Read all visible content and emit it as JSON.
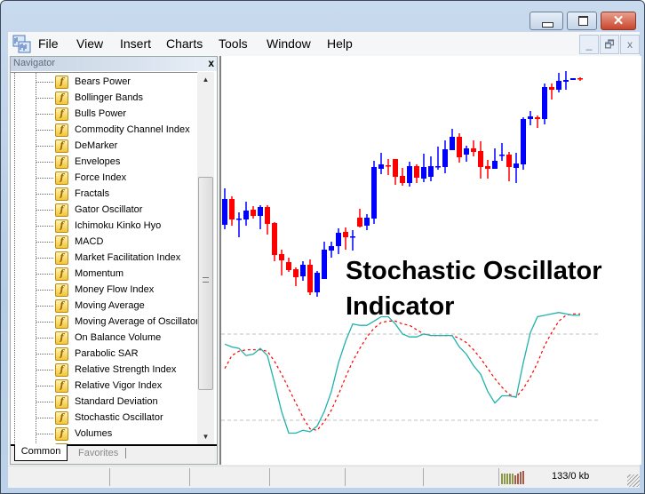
{
  "window": {
    "close_glyph": "✕"
  },
  "menu": [
    "File",
    "View",
    "Insert",
    "Charts",
    "Tools",
    "Window",
    "Help"
  ],
  "mdi_buttons": [
    "_",
    "🗗",
    "x"
  ],
  "navigator": {
    "title": "Navigator",
    "close": "x",
    "items": [
      "Bears Power",
      "Bollinger Bands",
      "Bulls Power",
      "Commodity Channel Index",
      "DeMarker",
      "Envelopes",
      "Force Index",
      "Fractals",
      "Gator Oscillator",
      "Ichimoku Kinko Hyo",
      "MACD",
      "Market Facilitation Index",
      "Momentum",
      "Money Flow Index",
      "Moving Average",
      "Moving Average of Oscillator",
      "On Balance Volume",
      "Parabolic SAR",
      "Relative Strength Index",
      "Relative Vigor Index",
      "Standard Deviation",
      "Stochastic Oscillator",
      "Volumes",
      ""
    ],
    "item_icon": "f",
    "tabs": [
      "Common",
      "Favorites"
    ],
    "active_tab": "Common"
  },
  "chart": {
    "overlay_line1": "Stochastic Oscillator",
    "overlay_line2": "Indicator",
    "colors": {
      "bull": "#0000ff",
      "bear": "#ff0000",
      "main": "#20b2aa",
      "signal": "#ff0000",
      "level": "#c0c0c0"
    },
    "candles_ohlc": [
      [
        148,
        189,
        143,
        177
      ],
      [
        177,
        180,
        147,
        154
      ],
      [
        155,
        162,
        134,
        155
      ],
      [
        154,
        174,
        147,
        164
      ],
      [
        165,
        169,
        155,
        158
      ],
      [
        158,
        170,
        143,
        168
      ],
      [
        168,
        170,
        137,
        149
      ],
      [
        150,
        151,
        107,
        114
      ],
      [
        115,
        120,
        91,
        108
      ],
      [
        106,
        111,
        95,
        97
      ],
      [
        98,
        100,
        79,
        89
      ],
      [
        90,
        107,
        85,
        103
      ],
      [
        103,
        109,
        69,
        72
      ],
      [
        72,
        96,
        67,
        94
      ],
      [
        87,
        129,
        87,
        120
      ],
      [
        119,
        129,
        111,
        124
      ],
      [
        124,
        144,
        115,
        139
      ],
      [
        140,
        145,
        120,
        134
      ],
      [
        135,
        142,
        119,
        135
      ],
      [
        156,
        166,
        145,
        146
      ],
      [
        147,
        160,
        142,
        156
      ],
      [
        155,
        220,
        149,
        213
      ],
      [
        211,
        229,
        205,
        216
      ],
      [
        215,
        222,
        204,
        214
      ],
      [
        222,
        222,
        193,
        202
      ],
      [
        203,
        212,
        192,
        195
      ],
      [
        195,
        219,
        191,
        214
      ],
      [
        214,
        216,
        195,
        201
      ],
      [
        200,
        228,
        196,
        213
      ],
      [
        202,
        225,
        197,
        214
      ],
      [
        214,
        236,
        210,
        214
      ],
      [
        213,
        243,
        206,
        233
      ],
      [
        232,
        256,
        232,
        247
      ],
      [
        247,
        251,
        218,
        224
      ],
      [
        227,
        237,
        219,
        234
      ],
      [
        234,
        243,
        225,
        230
      ],
      [
        231,
        242,
        200,
        213
      ],
      [
        214,
        221,
        200,
        211
      ],
      [
        211,
        234,
        211,
        220
      ],
      [
        227,
        240,
        220,
        227
      ],
      [
        227,
        230,
        197,
        213
      ],
      [
        212,
        229,
        195,
        217
      ],
      [
        216,
        269,
        210,
        267
      ],
      [
        267,
        276,
        260,
        270
      ],
      [
        269,
        271,
        257,
        267
      ],
      [
        267,
        307,
        261,
        303
      ],
      [
        303,
        307,
        289,
        300
      ],
      [
        300,
        319,
        297,
        310
      ],
      [
        309,
        321,
        300,
        311
      ],
      [
        311,
        313,
        311,
        313
      ],
      [
        313,
        314,
        310,
        312
      ]
    ],
    "stochastic": {
      "levels": [
        80,
        20
      ],
      "main": [
        73,
        71,
        70,
        65,
        66,
        70,
        65,
        46,
        26,
        11,
        11,
        13,
        12,
        16,
        26,
        40,
        60,
        75,
        87,
        86,
        86,
        89,
        92,
        92,
        87,
        80,
        78,
        78,
        80,
        79,
        79,
        79,
        79,
        71,
        66,
        58,
        52,
        40,
        32,
        37,
        37,
        36,
        60,
        81,
        92,
        93,
        94,
        95,
        94,
        93,
        93
      ],
      "signal": [
        56,
        65,
        68,
        69,
        69,
        69,
        68,
        61,
        52,
        42,
        32,
        22,
        14,
        13,
        19,
        27,
        38,
        50,
        61,
        70,
        78,
        84,
        88,
        89,
        89,
        87,
        86,
        83,
        80,
        79,
        79,
        79,
        79,
        77,
        74,
        69,
        63,
        56,
        49,
        43,
        38,
        36,
        42,
        50,
        60,
        72,
        81,
        89,
        93,
        94,
        94
      ]
    }
  },
  "status": {
    "traffic": "133/0 kb"
  }
}
